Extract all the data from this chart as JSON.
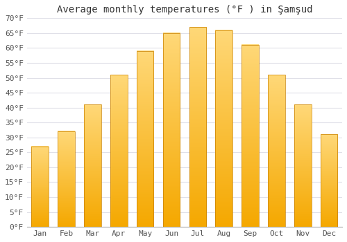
{
  "title": "Average monthly temperatures (°F ) in Şamşud",
  "months": [
    "Jan",
    "Feb",
    "Mar",
    "Apr",
    "May",
    "Jun",
    "Jul",
    "Aug",
    "Sep",
    "Oct",
    "Nov",
    "Dec"
  ],
  "values": [
    27,
    32,
    41,
    51,
    59,
    65,
    67,
    66,
    61,
    51,
    41,
    31
  ],
  "bar_color_bottom": "#F5A800",
  "bar_color_top": "#FFD878",
  "bar_edge_color": "#E09000",
  "ylim": [
    0,
    70
  ],
  "ytick_step": 5,
  "ylabel_suffix": "°F",
  "background_color": "#ffffff",
  "grid_color": "#e0e0e8",
  "title_fontsize": 10,
  "tick_fontsize": 8,
  "bar_width": 0.65
}
